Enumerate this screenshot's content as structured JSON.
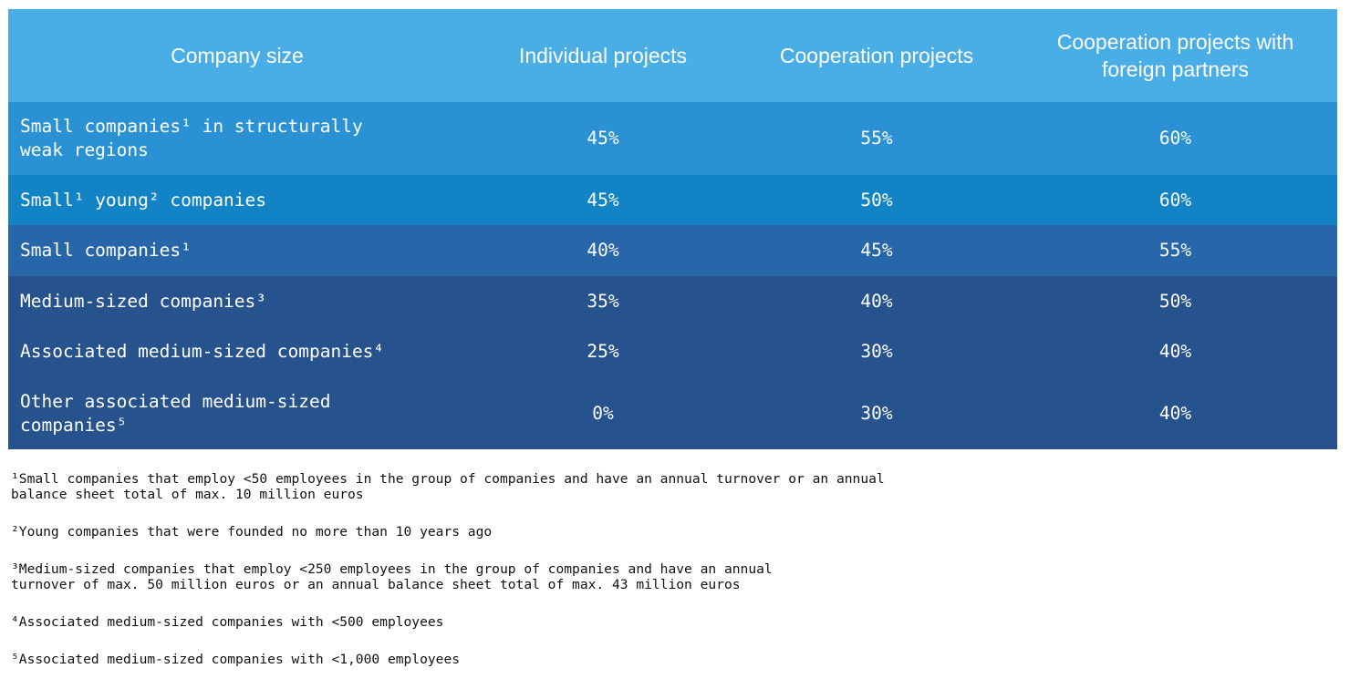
{
  "table": {
    "headers": [
      "Company size",
      "Individual projects",
      "Cooperation projects",
      "Cooperation projects with foreign partners"
    ],
    "rows": [
      {
        "label": "Small companies¹ in structurally weak regions",
        "values": [
          "45%",
          "55%",
          "60%"
        ]
      },
      {
        "label": "Small¹ young² companies",
        "values": [
          "45%",
          "50%",
          "60%"
        ]
      },
      {
        "label": "Small companies¹",
        "values": [
          "40%",
          "45%",
          "55%"
        ]
      },
      {
        "label": "Medium-sized companies³",
        "values": [
          "35%",
          "40%",
          "50%"
        ]
      },
      {
        "label": "Associated medium-sized companies⁴",
        "values": [
          "25%",
          "30%",
          "40%"
        ]
      },
      {
        "label": "Other associated medium-sized companies⁵",
        "values": [
          "0%",
          "30%",
          "40%"
        ]
      }
    ]
  },
  "footnotes": [
    "¹Small companies that employ <50 employees in the group of companies and have an annual turnover or an annual balance sheet total of max. 10 million euros",
    "²Young companies that were founded no more than 10 years ago",
    "³Medium-sized companies that employ <250 employees in the group of companies and have an annual turnover of max. 50 million euros or an annual balance sheet total of max. 43 million euros",
    "⁴Associated medium-sized companies with <500 employees",
    "⁵Associated medium-sized companies with <1,000 employees"
  ],
  "colors": {
    "header": "#4aaee6",
    "row1": "#2a92d4",
    "row2": "#1283c4",
    "row3": "#2766a8",
    "row4_6": "#26538d"
  }
}
